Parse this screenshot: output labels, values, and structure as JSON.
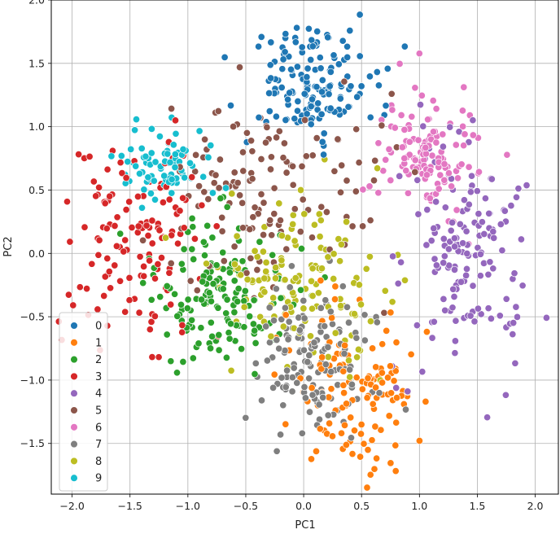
{
  "chart_data": {
    "type": "scatter",
    "title": "",
    "xlabel": "PC1",
    "ylabel": "PC2",
    "xlim": [
      -2.18,
      2.2
    ],
    "ylim": [
      -1.9,
      2.0
    ],
    "xticks": [
      -2.0,
      -1.5,
      -1.0,
      -0.5,
      0.0,
      0.5,
      1.0,
      1.5,
      2.0
    ],
    "yticks": [
      -1.5,
      -1.0,
      -0.5,
      0.0,
      0.5,
      1.0,
      1.5,
      2.0
    ],
    "xtick_labels": [
      "−2.0",
      "−1.5",
      "−1.0",
      "−0.5",
      "0.0",
      "0.5",
      "1.0",
      "1.5",
      "2.0"
    ],
    "ytick_labels": [
      "−1.5",
      "−1.0",
      "−0.5",
      "0.0",
      "0.5",
      "1.0",
      "1.5",
      "2.0"
    ],
    "grid": true,
    "legend_position": "lower-left",
    "series": [
      {
        "name": "0",
        "color": "#1f77b4",
        "center": [
          0.05,
          1.35
        ],
        "spread": [
          0.28,
          0.22
        ],
        "count": 150
      },
      {
        "name": "1",
        "color": "#ff7f0e",
        "center": [
          0.45,
          -1.1
        ],
        "spread": [
          0.28,
          0.32
        ],
        "count": 125
      },
      {
        "name": "2",
        "color": "#2ca02c",
        "center": [
          -0.75,
          -0.35
        ],
        "spread": [
          0.32,
          0.3
        ],
        "count": 150
      },
      {
        "name": "3",
        "color": "#d62728",
        "center": [
          -1.45,
          0.15
        ],
        "spread": [
          0.3,
          0.4
        ],
        "count": 130
      },
      {
        "name": "4",
        "color": "#9467bd",
        "center": [
          1.4,
          0.0
        ],
        "spread": [
          0.28,
          0.45
        ],
        "count": 150
      },
      {
        "name": "5",
        "color": "#8c564b",
        "center": [
          -0.35,
          0.45
        ],
        "spread": [
          0.45,
          0.4
        ],
        "count": 130
      },
      {
        "name": "6",
        "color": "#e377c2",
        "center": [
          1.05,
          0.8
        ],
        "spread": [
          0.22,
          0.25
        ],
        "count": 125
      },
      {
        "name": "7",
        "color": "#7f7f7f",
        "center": [
          0.1,
          -0.85
        ],
        "spread": [
          0.25,
          0.28
        ],
        "count": 140
      },
      {
        "name": "8",
        "color": "#bcbd22",
        "center": [
          0.0,
          -0.25
        ],
        "spread": [
          0.38,
          0.35
        ],
        "count": 140
      },
      {
        "name": "9",
        "color": "#17becf",
        "center": [
          -1.2,
          0.7
        ],
        "spread": [
          0.2,
          0.15
        ],
        "count": 85
      }
    ]
  }
}
